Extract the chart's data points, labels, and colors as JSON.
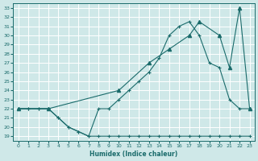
{
  "xlabel": "Humidex (Indice chaleur)",
  "bg_color": "#cfe8e8",
  "grid_color": "#b8d8d8",
  "line_color": "#1a6b6b",
  "xlim": [
    -0.5,
    23.5
  ],
  "ylim": [
    18.5,
    33.5
  ],
  "xticks": [
    0,
    1,
    2,
    3,
    4,
    5,
    6,
    7,
    8,
    9,
    10,
    11,
    12,
    13,
    14,
    15,
    16,
    17,
    18,
    19,
    20,
    21,
    22,
    23
  ],
  "yticks": [
    19,
    20,
    21,
    22,
    23,
    24,
    25,
    26,
    27,
    28,
    29,
    30,
    31,
    32,
    33
  ],
  "line1_x": [
    0,
    1,
    2,
    3,
    4,
    5,
    6,
    7,
    8,
    9,
    10,
    11,
    12,
    13,
    14,
    15,
    16,
    17,
    18,
    19,
    20,
    21,
    22,
    23
  ],
  "line1_y": [
    22,
    22,
    22,
    22,
    21,
    20,
    19.5,
    19,
    19,
    19,
    19,
    19,
    19,
    19,
    19,
    19,
    19,
    19,
    19,
    19,
    19,
    19,
    19,
    19
  ],
  "line2_x": [
    0,
    1,
    2,
    3,
    4,
    5,
    6,
    7,
    8,
    9,
    10,
    11,
    12,
    13,
    14,
    15,
    16,
    17,
    18,
    19,
    20,
    21,
    22,
    23
  ],
  "line2_y": [
    22,
    22,
    22,
    22,
    21,
    20,
    19.5,
    19,
    22,
    22,
    23,
    24,
    25,
    26,
    27.5,
    30,
    31,
    31.5,
    30,
    27,
    26.5,
    23,
    22,
    22
  ],
  "line3_x": [
    0,
    3,
    10,
    13,
    15,
    17,
    18,
    20,
    21,
    22,
    23
  ],
  "line3_y": [
    22,
    22,
    24,
    27,
    28.5,
    30,
    31.5,
    30,
    26.5,
    33,
    22
  ]
}
